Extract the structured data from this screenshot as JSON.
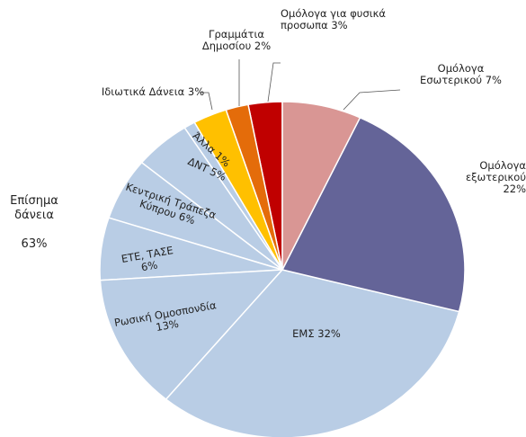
{
  "chart_data": {
    "type": "pie",
    "categories": [
      "Ομόλογα Εσωτερικού",
      "Ομόλογα εξωτερικού",
      "ΕΜΣ",
      "Ρωσική Ομοσπονδία",
      "ΕΤΕ, ΤΑΣΕ",
      "Κεντρική Τράπεζα Κύπρου",
      "ΔΝΤ",
      "Άλλα",
      "Ιδιωτικά Δάνεια",
      "Γραμμάτια Δημοσίου",
      "Ομόλογα για φυσικά προσωπα"
    ],
    "values": [
      7,
      22,
      32,
      13,
      6,
      6,
      5,
      1,
      3,
      2,
      3
    ],
    "value_labels": [
      "7%",
      "22%",
      "32%",
      "13%",
      "6%",
      "6%",
      "5%",
      "1%",
      "3%",
      "2%",
      "3%"
    ],
    "colors": [
      "#d99694",
      "#646498",
      "#b9cde5",
      "#b9cde5",
      "#b9cde5",
      "#b9cde5",
      "#b9cde5",
      "#b9cde5",
      "#ffc000",
      "#e46c0a",
      "#c00000"
    ],
    "annotations": [
      {
        "text": "Επίσημα δάνεια",
        "label": "63%"
      }
    ]
  }
}
